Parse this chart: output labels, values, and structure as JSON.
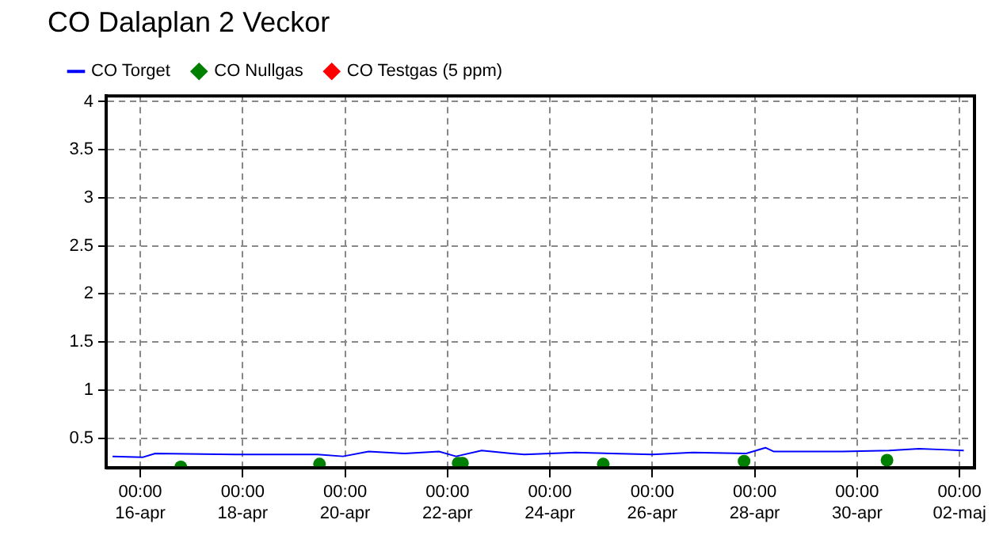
{
  "chart_data": {
    "type": "line",
    "title": "CO Dalaplan 2 Veckor",
    "series": [
      {
        "name": "CO Torget",
        "color": "#0000ff",
        "marker": "none",
        "x": [
          "--04-15T11:00",
          "--04-16T01:00",
          "--04-16T07:00",
          "--04-17T21:00",
          "--04-19T11:00",
          "--04-19T23:00",
          "--04-20T11:00",
          "--04-21T04:00",
          "--04-21T20:00",
          "--04-22T04:00",
          "--04-22T16:00",
          "--04-23T06:00",
          "--04-23T12:00",
          "--04-24T12:00",
          "--04-26T00:00",
          "--04-26T19:00",
          "--04-27T20:00",
          "--04-28T05:00",
          "--04-28T09:00",
          "--04-29T17:00",
          "--04-30T15:00",
          "--05-01T05:00",
          "--05-01T16:00",
          "--05-02T02:00"
        ],
        "values": [
          0.31,
          0.3,
          0.34,
          0.33,
          0.33,
          0.31,
          0.36,
          0.34,
          0.36,
          0.31,
          0.37,
          0.34,
          0.33,
          0.35,
          0.33,
          0.35,
          0.34,
          0.4,
          0.36,
          0.36,
          0.37,
          0.39,
          0.38,
          0.37
        ]
      },
      {
        "name": "CO Nullgas",
        "type": "scatter",
        "color": "#008000",
        "marker": "circle",
        "x": [
          "--04-16T19:00",
          "--04-19T12:00",
          "--04-22T05:00",
          "--04-22T07:00",
          "--04-25T01:00",
          "--04-27T19:00",
          "--04-30T14:00"
        ],
        "values": [
          0.2,
          0.23,
          0.24,
          0.24,
          0.23,
          0.26,
          0.27
        ]
      },
      {
        "name": "CO Testgas (5 ppm)",
        "type": "scatter",
        "color": "#ff0000",
        "marker": "circle"
      }
    ],
    "xlim": [
      "--04-15T08:00",
      "--05-02T07:00"
    ],
    "xticks": [
      {
        "value": "--04-16T00:00",
        "label": "00:00\n16-apr"
      },
      {
        "value": "--04-18T00:00",
        "label": "00:00\n18-apr"
      },
      {
        "value": "--04-20T00:00",
        "label": "00:00\n20-apr"
      },
      {
        "value": "--04-22T00:00",
        "label": "00:00\n22-apr"
      },
      {
        "value": "--04-24T00:00",
        "label": "00:00\n24-apr"
      },
      {
        "value": "--04-26T00:00",
        "label": "00:00\n26-apr"
      },
      {
        "value": "--04-28T00:00",
        "label": "00:00\n28-apr"
      },
      {
        "value": "--04-30T00:00",
        "label": "00:00\n30-apr"
      },
      {
        "value": "--05-02T00:00",
        "label": "00:00\n02-maj"
      }
    ],
    "ylim": [
      0.19,
      4.06
    ],
    "yticks": [
      0.5,
      1,
      1.5,
      2,
      2.5,
      3,
      3.5,
      4
    ],
    "grid": true,
    "legend": "top left",
    "line_style": "solid"
  }
}
